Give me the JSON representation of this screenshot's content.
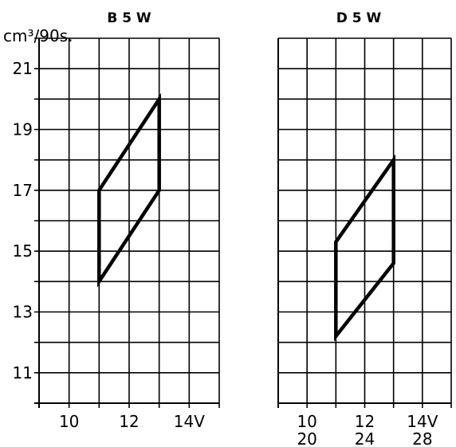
{
  "y_unit_label": "cm³/90s.",
  "chart_data": [
    {
      "type": "area",
      "title": "B 5 W",
      "xlabel": "",
      "ylabel": "cm³/90s.",
      "x_tick_labels": [
        "10",
        "12",
        "14V"
      ],
      "x_ticks": [
        10,
        12,
        14
      ],
      "y_tick_labels": [
        "21",
        "19",
        "17",
        "15",
        "13",
        "11"
      ],
      "y_ticks": [
        21,
        19,
        17,
        15,
        13,
        11
      ],
      "xlim": [
        9,
        15
      ],
      "ylim": [
        10,
        22
      ],
      "grid": true,
      "series": [
        {
          "points": [
            [
              11,
              14
            ],
            [
              13,
              17
            ],
            [
              13,
              20
            ],
            [
              11,
              17
            ]
          ]
        }
      ]
    },
    {
      "type": "area",
      "title": "D 5 W",
      "xlabel": "",
      "ylabel": "",
      "x_tick_labels": [
        "10",
        "12",
        "14V"
      ],
      "x_tick_labels_secondary": [
        "20",
        "24",
        "28"
      ],
      "x_ticks": [
        10,
        12,
        14
      ],
      "y_ticks": [
        21,
        19,
        17,
        15,
        13,
        11
      ],
      "xlim": [
        9,
        15
      ],
      "ylim": [
        10,
        22
      ],
      "grid": true,
      "series": [
        {
          "points": [
            [
              11,
              12.2
            ],
            [
              13,
              14.6
            ],
            [
              13,
              18
            ],
            [
              11,
              15.3
            ]
          ]
        }
      ]
    }
  ]
}
